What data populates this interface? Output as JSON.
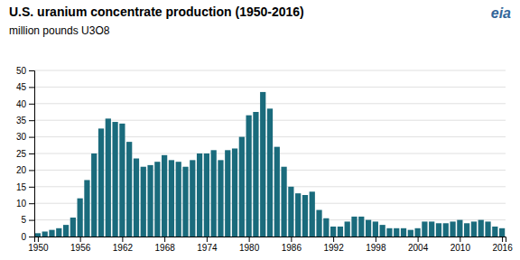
{
  "chart_data": {
    "type": "bar",
    "title": "U.S. uranium concentrate production (1950-2016)",
    "subtitle": "million pounds U3O8",
    "annotations": [
      {
        "text": "eia",
        "color": "#336699"
      }
    ],
    "x": [
      1950,
      1951,
      1952,
      1953,
      1954,
      1955,
      1956,
      1957,
      1958,
      1959,
      1960,
      1961,
      1962,
      1963,
      1964,
      1965,
      1966,
      1967,
      1968,
      1969,
      1970,
      1971,
      1972,
      1973,
      1974,
      1975,
      1976,
      1977,
      1978,
      1979,
      1980,
      1981,
      1982,
      1983,
      1984,
      1985,
      1986,
      1987,
      1988,
      1989,
      1990,
      1991,
      1992,
      1993,
      1994,
      1995,
      1996,
      1997,
      1998,
      1999,
      2000,
      2001,
      2002,
      2003,
      2004,
      2005,
      2006,
      2007,
      2008,
      2009,
      2010,
      2011,
      2012,
      2013,
      2014,
      2015,
      2016
    ],
    "values": [
      1.0,
      1.5,
      2.0,
      2.5,
      3.5,
      5.7,
      11.5,
      17.0,
      25.0,
      32.5,
      35.5,
      34.5,
      34.0,
      28.5,
      23.5,
      21.0,
      21.5,
      22.5,
      24.5,
      23.0,
      22.5,
      21.0,
      23.0,
      25.0,
      25.0,
      26.0,
      23.0,
      26.0,
      26.5,
      30.0,
      36.5,
      37.5,
      43.5,
      38.5,
      27.0,
      21.0,
      15.0,
      13.0,
      12.5,
      13.5,
      8.0,
      5.5,
      3.0,
      3.0,
      4.5,
      6.0,
      6.0,
      5.0,
      4.5,
      3.5,
      2.5,
      2.5,
      2.5,
      2.0,
      2.5,
      4.5,
      4.5,
      4.0,
      4.0,
      4.5,
      5.0,
      4.0,
      4.5,
      5.0,
      4.5,
      3.0,
      2.5
    ],
    "color": "#1a6b7c",
    "xlim": [
      1949.5,
      2016.5
    ],
    "xticks": [
      1950,
      1956,
      1962,
      1968,
      1974,
      1980,
      1986,
      1992,
      1998,
      2004,
      2010,
      2016
    ],
    "ylim": [
      0,
      50
    ],
    "yticks": [
      0,
      5,
      10,
      15,
      20,
      25,
      30,
      35,
      40,
      45,
      50
    ],
    "grid": true
  }
}
